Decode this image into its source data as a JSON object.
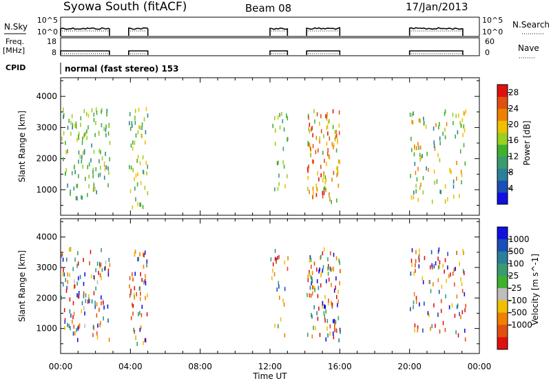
{
  "header": {
    "station": "Syowa South (fitACF)",
    "beam": "Beam 08",
    "date": "17/Jan/2013"
  },
  "scan_panels": {
    "nsky_label": "N.Sky",
    "nsky_ticks": [
      "10^5",
      "10^0"
    ],
    "nsearch_label": "N.Search",
    "nsearch_ticks": [
      "10^5",
      "10^0"
    ],
    "freq_label_line1": "Freq.",
    "freq_label_line2": "[MHz]",
    "freq_ticks": [
      "18",
      "8"
    ],
    "nave_label": "Nave",
    "nave_ticks": [
      "60",
      "0"
    ],
    "cpid_label": "CPID",
    "cpid_text": "normal (fast stereo) 153",
    "active_intervals_hours": [
      [
        0.0,
        2.8
      ],
      [
        3.9,
        5.0
      ],
      [
        12.0,
        13.0
      ],
      [
        14.1,
        16.0
      ],
      [
        20.0,
        24.0
      ]
    ]
  },
  "colors": {
    "power_scale": [
      "#1010e0",
      "#1a4fb8",
      "#2a7f9a",
      "#3a9a70",
      "#40b030",
      "#9ad020",
      "#f0c000",
      "#f08000",
      "#e05010",
      "#e01010"
    ],
    "velocity_scale": [
      "#1010e0",
      "#1a4fb8",
      "#2a7f9a",
      "#3a9a70",
      "#40b030",
      "#bdbdbd",
      "#f0c000",
      "#f08000",
      "#e05010",
      "#e01010"
    ]
  },
  "chart_data": [
    {
      "type": "scatter",
      "name": "power",
      "ylabel": "Slant Range [km]",
      "yticks": [
        1000,
        2000,
        3000,
        4000
      ],
      "ylim": [
        180,
        4600
      ],
      "xlim": [
        0,
        24
      ],
      "colorbar_label": "Power [dB]",
      "colorbar_ticks": [
        4,
        8,
        12,
        16,
        20,
        24,
        28
      ],
      "colorbar_range": [
        0,
        30
      ],
      "clusters": [
        {
          "t": [
            0.0,
            2.8
          ],
          "r": [
            700,
            3600
          ],
          "n": 120,
          "levels": [
            8,
            10,
            12,
            13,
            14,
            15,
            16,
            18
          ]
        },
        {
          "t": [
            3.9,
            5.0
          ],
          "r": [
            400,
            3600
          ],
          "n": 55,
          "levels": [
            6,
            10,
            12,
            14,
            16,
            17,
            18,
            20
          ]
        },
        {
          "t": [
            12.0,
            13.0
          ],
          "r": [
            700,
            3600
          ],
          "n": 25,
          "levels": [
            10,
            12,
            14,
            15,
            16,
            18
          ]
        },
        {
          "t": [
            14.1,
            16.0
          ],
          "r": [
            600,
            3600
          ],
          "n": 110,
          "levels": [
            12,
            16,
            18,
            20,
            22,
            24,
            26,
            28
          ]
        },
        {
          "t": [
            20.0,
            23.2
          ],
          "r": [
            600,
            3600
          ],
          "n": 100,
          "levels": [
            8,
            12,
            14,
            16,
            18,
            20,
            22
          ]
        }
      ]
    },
    {
      "type": "scatter",
      "name": "velocity",
      "ylabel": "Slant Range [km]",
      "yticks": [
        1000,
        2000,
        3000,
        4000
      ],
      "ylim": [
        180,
        4600
      ],
      "xlim": [
        0,
        24
      ],
      "xlabel": "Time UT",
      "xticks": [
        "00:00",
        "04:00",
        "08:00",
        "12:00",
        "16:00",
        "20:00",
        "00:00"
      ],
      "colorbar_label": "Velocity [m s^-1]",
      "colorbar_ticks": [
        "1000",
        "500",
        "100",
        "25",
        "-25",
        "-100",
        "-500",
        "-1000"
      ],
      "clusters": [
        {
          "t": [
            0.0,
            2.8
          ],
          "r": [
            600,
            3600
          ],
          "n": 120,
          "levels": [
            0,
            1,
            2,
            3,
            5,
            6,
            7,
            8,
            9
          ]
        },
        {
          "t": [
            3.9,
            5.0
          ],
          "r": [
            400,
            3600
          ],
          "n": 55,
          "levels": [
            0,
            3,
            6,
            7,
            8,
            9
          ]
        },
        {
          "t": [
            12.0,
            13.0
          ],
          "r": [
            700,
            3600
          ],
          "n": 25,
          "levels": [
            1,
            3,
            6,
            7,
            8,
            9
          ]
        },
        {
          "t": [
            14.1,
            16.0
          ],
          "r": [
            600,
            3600
          ],
          "n": 110,
          "levels": [
            0,
            2,
            3,
            4,
            6,
            7,
            8,
            9
          ]
        },
        {
          "t": [
            20.0,
            23.2
          ],
          "r": [
            600,
            3600
          ],
          "n": 100,
          "levels": [
            0,
            1,
            3,
            6,
            7,
            8,
            9
          ]
        }
      ]
    }
  ]
}
